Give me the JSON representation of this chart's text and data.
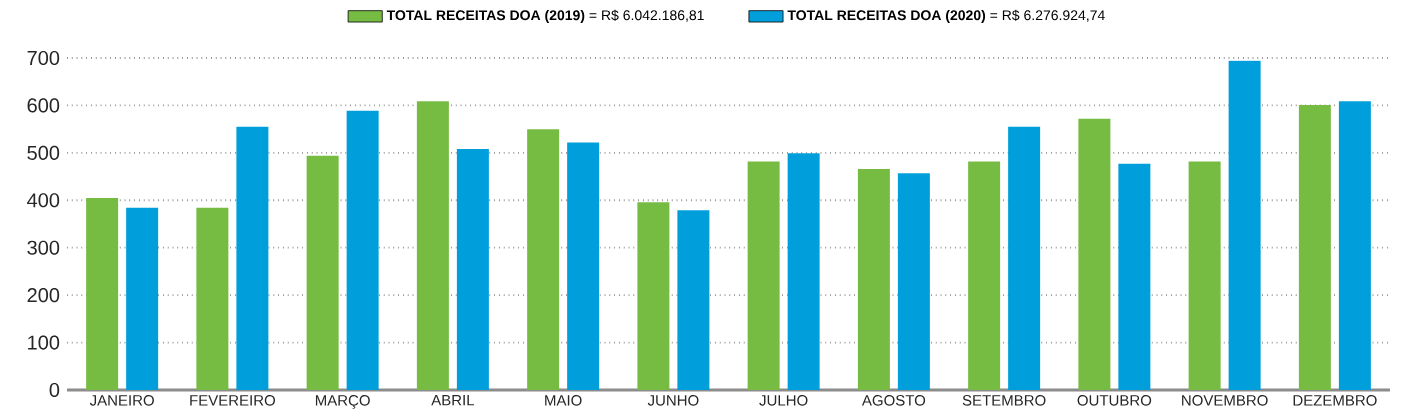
{
  "chart_data": {
    "type": "bar",
    "categories": [
      "JANEIRO",
      "FEVEREIRO",
      "MARÇO",
      "ABRIL",
      "MAIO",
      "JUNHO",
      "JULHO",
      "AGOSTO",
      "SETEMBRO",
      "OUTUBRO",
      "NOVEMBRO",
      "DEZEMBRO"
    ],
    "series": [
      {
        "name": "**TOTAL RECEITAS DOA (2019)** = R$ 6.042.186,81",
        "color": "#76bc43",
        "values": [
          405,
          384,
          494,
          609,
          550,
          396,
          482,
          466,
          482,
          572,
          482,
          601
        ]
      },
      {
        "name": "**TOTAL RECEITAS DOA (2020)** = R$ 6.276.924,74",
        "color": "#009fdb",
        "values": [
          384,
          555,
          589,
          508,
          522,
          379,
          499,
          457,
          555,
          477,
          694,
          609
        ]
      }
    ],
    "ylim": [
      0,
      700
    ],
    "yticks": [
      0,
      100,
      200,
      300,
      400,
      500,
      600,
      700
    ],
    "grid": "y",
    "legend": "top"
  }
}
